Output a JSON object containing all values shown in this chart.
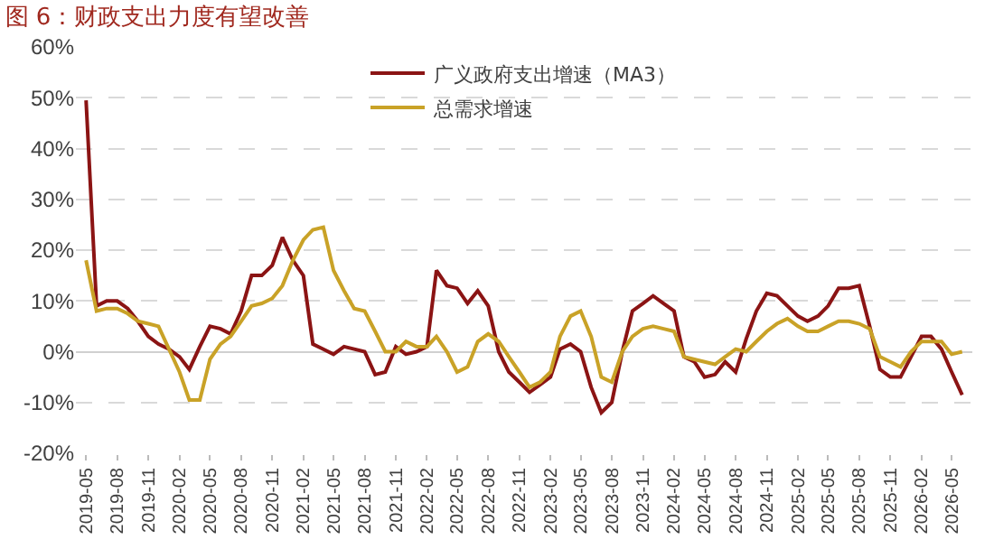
{
  "chart_data": {
    "type": "line",
    "title": "图 6：财政支出力度有望改善",
    "x": [
      "2019-05",
      "2019-06",
      "2019-07",
      "2019-08",
      "2019-09",
      "2019-10",
      "2019-11",
      "2019-12",
      "2020-01",
      "2020-02",
      "2020-03",
      "2020-04",
      "2020-05",
      "2020-06",
      "2020-07",
      "2020-08",
      "2020-09",
      "2020-10",
      "2020-11",
      "2020-12",
      "2021-01",
      "2021-02",
      "2021-03",
      "2021-04",
      "2021-05",
      "2021-06",
      "2021-07",
      "2021-08",
      "2021-09",
      "2021-10",
      "2021-11",
      "2021-12",
      "2022-01",
      "2022-02",
      "2022-03",
      "2022-04",
      "2022-05",
      "2022-06",
      "2022-07",
      "2022-08",
      "2022-09",
      "2022-10",
      "2022-11",
      "2022-12",
      "2023-01",
      "2023-02",
      "2023-03",
      "2023-04",
      "2023-05",
      "2023-06",
      "2023-07",
      "2023-08",
      "2023-09",
      "2023-10",
      "2023-11",
      "2023-12",
      "2024-01",
      "2024-02",
      "2024-03",
      "2024-04",
      "2024-05",
      "2024-06",
      "2024-07",
      "2024-08",
      "2024-09",
      "2024-10",
      "2024-11",
      "2024-12",
      "2025-01",
      "2025-02",
      "2025-03",
      "2025-04",
      "2025-05",
      "2025-06",
      "2025-07",
      "2025-08",
      "2025-09",
      "2025-10",
      "2025-11",
      "2025-12",
      "2026-01",
      "2026-02",
      "2026-03",
      "2026-04",
      "2026-05",
      "2026-06"
    ],
    "series": [
      {
        "name": "广义政府支出增速（MA3）",
        "color": "#8b1414",
        "values": [
          49.5,
          9,
          10,
          10,
          8.5,
          6,
          3,
          1.5,
          0.5,
          -1,
          -3.5,
          1,
          5,
          4.5,
          3.5,
          8,
          15,
          15,
          17,
          22.5,
          18,
          15,
          1.5,
          0.5,
          -0.5,
          1,
          0.5,
          0,
          -4.5,
          -4,
          1,
          -0.5,
          0,
          1,
          16,
          13,
          12.5,
          9.5,
          12,
          9,
          0,
          -4,
          -6,
          -8,
          -6.5,
          -5,
          0.5,
          1.5,
          0,
          -7,
          -12,
          -10,
          0,
          8,
          9.5,
          11,
          9.5,
          8,
          -1,
          -2,
          -5,
          -4.5,
          -2,
          -4,
          2.5,
          8,
          11.5,
          11,
          9,
          7,
          6,
          7,
          9,
          12.5,
          12.5,
          13,
          5,
          -3.5,
          -5,
          -5,
          -1,
          3,
          3,
          0.5,
          -4,
          -8.5
        ]
      },
      {
        "name": "总需求增速",
        "color": "#c9a227",
        "values": [
          18,
          8,
          8.5,
          8.5,
          7.5,
          6,
          5.5,
          5,
          0.5,
          -4,
          -9.5,
          -9.5,
          -1.5,
          1.5,
          3,
          6,
          9,
          9.5,
          10.5,
          13,
          18,
          22,
          24,
          24.5,
          16,
          12,
          8.5,
          8,
          4,
          0,
          0,
          2,
          1,
          1,
          3,
          0,
          -4,
          -3,
          2,
          3.5,
          2,
          -1,
          -4,
          -7,
          -6,
          -4,
          3,
          7,
          8,
          3,
          -5,
          -6,
          0,
          3,
          4.5,
          5,
          4.5,
          4,
          -1,
          -1.5,
          -2,
          -2.5,
          -1,
          0.5,
          0,
          2,
          4,
          5.5,
          6.5,
          5,
          4,
          4,
          5,
          6,
          6,
          5.5,
          4.5,
          -1,
          -2,
          -3,
          0,
          2,
          2,
          2,
          -0.5,
          0
        ]
      }
    ],
    "xlim": [
      "2019-04",
      "2026-07"
    ],
    "xticks": [
      "2019-05",
      "2019-08",
      "2019-11",
      "2020-02",
      "2020-05",
      "2020-08",
      "2020-11",
      "2021-02",
      "2021-05",
      "2021-08",
      "2021-11",
      "2022-02",
      "2022-05",
      "2022-08",
      "2022-11",
      "2023-02",
      "2023-05",
      "2023-08",
      "2023-11",
      "2024-02",
      "2024-05",
      "2024-08",
      "2024-11",
      "2025-02",
      "2025-05",
      "2025-08",
      "2025-11",
      "2026-02",
      "2026-05"
    ],
    "ylim": [
      -20,
      60
    ],
    "yticks": [
      {
        "value": -20,
        "label": "-20%"
      },
      {
        "value": -10,
        "label": "-10%"
      },
      {
        "value": 0,
        "label": "0%"
      },
      {
        "value": 10,
        "label": "10%"
      },
      {
        "value": 20,
        "label": "20%"
      },
      {
        "value": 30,
        "label": "30%"
      },
      {
        "value": 40,
        "label": "40%"
      },
      {
        "value": 50,
        "label": "50%"
      },
      {
        "value": 60,
        "label": "60%"
      }
    ],
    "grid": "y",
    "legend": "top",
    "marker": "none",
    "line_style": "solid"
  }
}
